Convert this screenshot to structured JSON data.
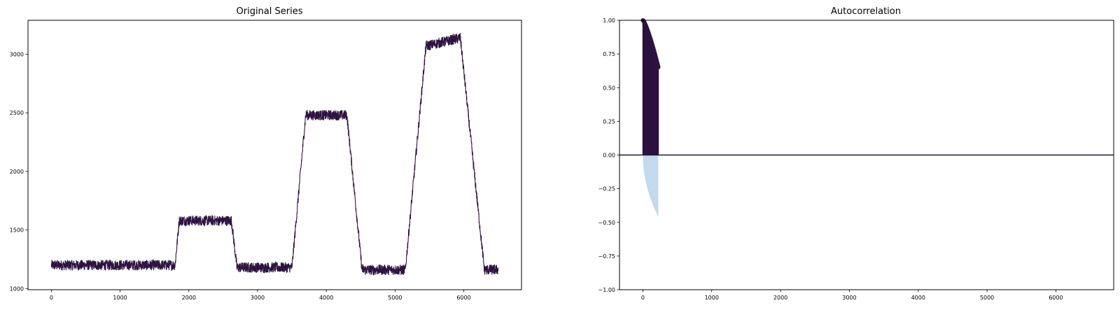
{
  "chart_data": [
    {
      "type": "line",
      "title": "Original Series",
      "xlabel": "",
      "ylabel": "",
      "xlim": [
        -340,
        6840
      ],
      "ylim": [
        990,
        3290
      ],
      "xticks": [
        0,
        1000,
        2000,
        3000,
        4000,
        5000,
        6000
      ],
      "xtick_labels": [
        "0",
        "1000",
        "2000",
        "3000",
        "4000",
        "5000",
        "6000"
      ],
      "yticks": [
        1000,
        1500,
        2000,
        2500,
        3000
      ],
      "ytick_labels": [
        "1000",
        "1500",
        "2000",
        "2500",
        "3000"
      ],
      "grid": false,
      "line_color": "#2e1340",
      "noise_band": 45,
      "series_levels": {
        "x": [
          0,
          1800,
          1860,
          2620,
          2700,
          3500,
          3700,
          4300,
          4520,
          5150,
          5450,
          5950,
          6300,
          6500
        ],
        "y": [
          1200,
          1200,
          1580,
          1580,
          1180,
          1180,
          2480,
          2480,
          1160,
          1160,
          3070,
          3140,
          1160,
          1160
        ]
      }
    },
    {
      "type": "bar",
      "title": "Autocorrelation",
      "xlabel": "",
      "ylabel": "",
      "xlim": [
        -340,
        6840
      ],
      "ylim": [
        -1.0,
        1.0
      ],
      "xticks": [
        0,
        1000,
        2000,
        3000,
        4000,
        5000,
        6000
      ],
      "xtick_labels": [
        "0",
        "1000",
        "2000",
        "3000",
        "4000",
        "5000",
        "6000"
      ],
      "yticks": [
        1.0,
        0.75,
        0.5,
        0.25,
        0.0,
        -0.25,
        -0.5,
        -0.75,
        -1.0
      ],
      "ytick_labels": [
        "1.00",
        "0.75",
        "0.50",
        "0.25",
        "0.00",
        "−0.25",
        "−0.50",
        "−0.75",
        "−1.00"
      ],
      "grid": false,
      "bar_color": "#2e1340",
      "confidence_color": "#c3d9ec",
      "lags_max": 225,
      "acf_start": 1.0,
      "acf_end": 0.65,
      "confidence_end": -0.46
    }
  ]
}
